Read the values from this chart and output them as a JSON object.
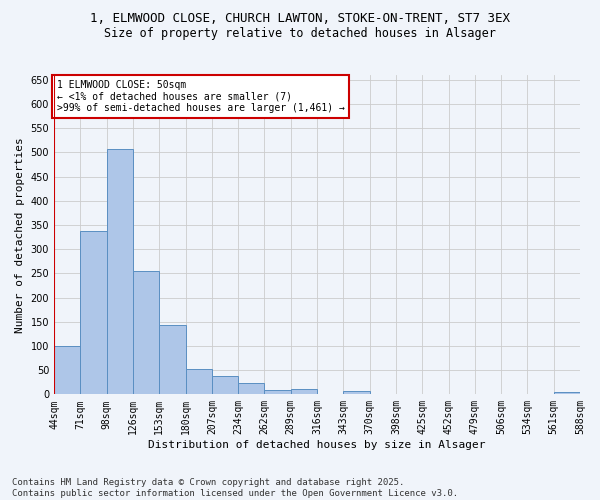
{
  "title1": "1, ELMWOOD CLOSE, CHURCH LAWTON, STOKE-ON-TRENT, ST7 3EX",
  "title2": "Size of property relative to detached houses in Alsager",
  "xlabel": "Distribution of detached houses by size in Alsager",
  "ylabel": "Number of detached properties",
  "bar_values": [
    100,
    338,
    507,
    255,
    143,
    53,
    37,
    24,
    9,
    10,
    0,
    6,
    0,
    0,
    0,
    0,
    0,
    0,
    0,
    5
  ],
  "categories": [
    "44sqm",
    "71sqm",
    "98sqm",
    "126sqm",
    "153sqm",
    "180sqm",
    "207sqm",
    "234sqm",
    "262sqm",
    "289sqm",
    "316sqm",
    "343sqm",
    "370sqm",
    "398sqm",
    "425sqm",
    "452sqm",
    "479sqm",
    "506sqm",
    "534sqm",
    "561sqm",
    "588sqm"
  ],
  "bar_color": "#aec6e8",
  "bar_edge_color": "#5a8fc2",
  "annotation_box_text": "1 ELMWOOD CLOSE: 50sqm\n← <1% of detached houses are smaller (7)\n>99% of semi-detached houses are larger (1,461) →",
  "annotation_box_color": "#ffffff",
  "annotation_box_edge_color": "#cc0000",
  "ylim": [
    0,
    660
  ],
  "yticks": [
    0,
    50,
    100,
    150,
    200,
    250,
    300,
    350,
    400,
    450,
    500,
    550,
    600,
    650
  ],
  "grid_color": "#cccccc",
  "bg_color": "#f0f4fa",
  "footer_text": "Contains HM Land Registry data © Crown copyright and database right 2025.\nContains public sector information licensed under the Open Government Licence v3.0.",
  "title_fontsize": 9,
  "subtitle_fontsize": 8.5,
  "axis_fontsize": 8,
  "tick_fontsize": 7,
  "annotation_fontsize": 7,
  "footer_fontsize": 6.5
}
